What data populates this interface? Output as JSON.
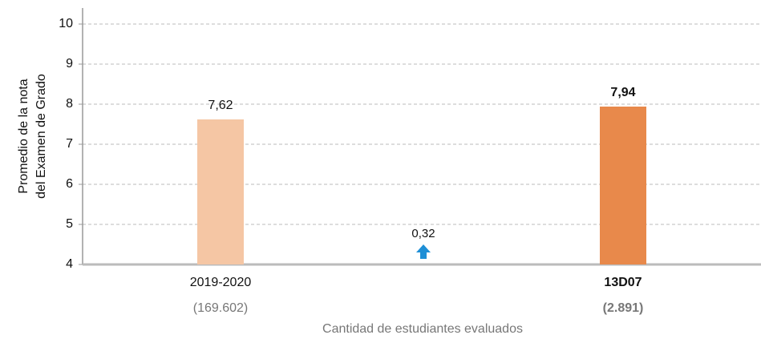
{
  "chart_data": {
    "type": "bar",
    "y_label": [
      "Promedio de la nota",
      "del Examen de Grado"
    ],
    "x_label": "Cantidad de estudiantes evaluados",
    "categories": [
      "2019-2020",
      "13D07"
    ],
    "category_counts": [
      "(169.602)",
      "(2.891)"
    ],
    "values": [
      7.62,
      7.94
    ],
    "value_labels": [
      "7,62",
      "7,94"
    ],
    "colors": [
      "#f5c6a4",
      "#e8894b"
    ],
    "annotation": "0,32",
    "ylim": [
      4,
      10.4
    ],
    "yticks": [
      4,
      5,
      6,
      7,
      8,
      9,
      10
    ],
    "grid": true
  }
}
